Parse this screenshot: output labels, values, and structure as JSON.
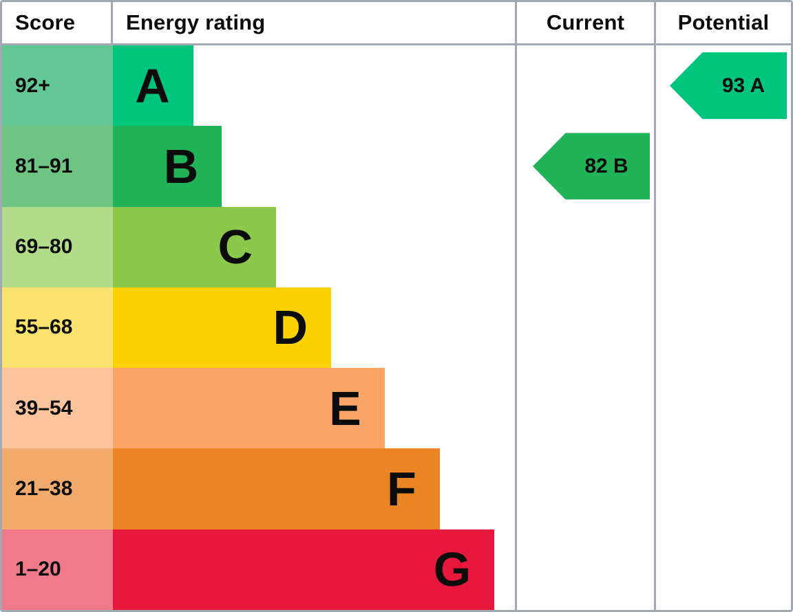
{
  "header": {
    "score": "Score",
    "energy_rating": "Energy rating",
    "current": "Current",
    "potential": "Potential"
  },
  "colors": {
    "grid_border": "#a3a9b3",
    "text": "#0b0c0c",
    "background": "#ffffff"
  },
  "chart_data": {
    "type": "bar",
    "subtype": "epc-energy-rating",
    "orientation": "horizontal",
    "title": "",
    "columns": [
      "Score",
      "Energy rating",
      "Current",
      "Potential"
    ],
    "bands": [
      {
        "score": "92+",
        "letter": "A",
        "bar_color": "#00c57d",
        "score_color": "#63c795",
        "width_pct": 20.0
      },
      {
        "score": "81–91",
        "letter": "B",
        "bar_color": "#21b357",
        "score_color": "#6ec482",
        "width_pct": 27.1
      },
      {
        "score": "69–80",
        "letter": "C",
        "bar_color": "#8cc84b",
        "score_color": "#b0db88",
        "width_pct": 40.6
      },
      {
        "score": "55–68",
        "letter": "D",
        "bar_color": "#fcd100",
        "score_color": "#fae26f",
        "width_pct": 54.3
      },
      {
        "score": "39–54",
        "letter": "E",
        "bar_color": "#faa565",
        "score_color": "#fbc49c",
        "width_pct": 67.6
      },
      {
        "score": "21–38",
        "letter": "F",
        "bar_color": "#eb8523",
        "score_color": "#f2aa6c",
        "width_pct": 81.3
      },
      {
        "score": "1–20",
        "letter": "G",
        "bar_color": "#e8173c",
        "score_color": "#f07a8a",
        "width_pct": 94.9
      }
    ],
    "current": {
      "value": 82,
      "band": "B",
      "label": "82 B",
      "band_index": 1,
      "color": "#21b357"
    },
    "potential": {
      "value": 93,
      "band": "A",
      "label": "93 A",
      "band_index": 0,
      "color": "#00c57d"
    }
  }
}
